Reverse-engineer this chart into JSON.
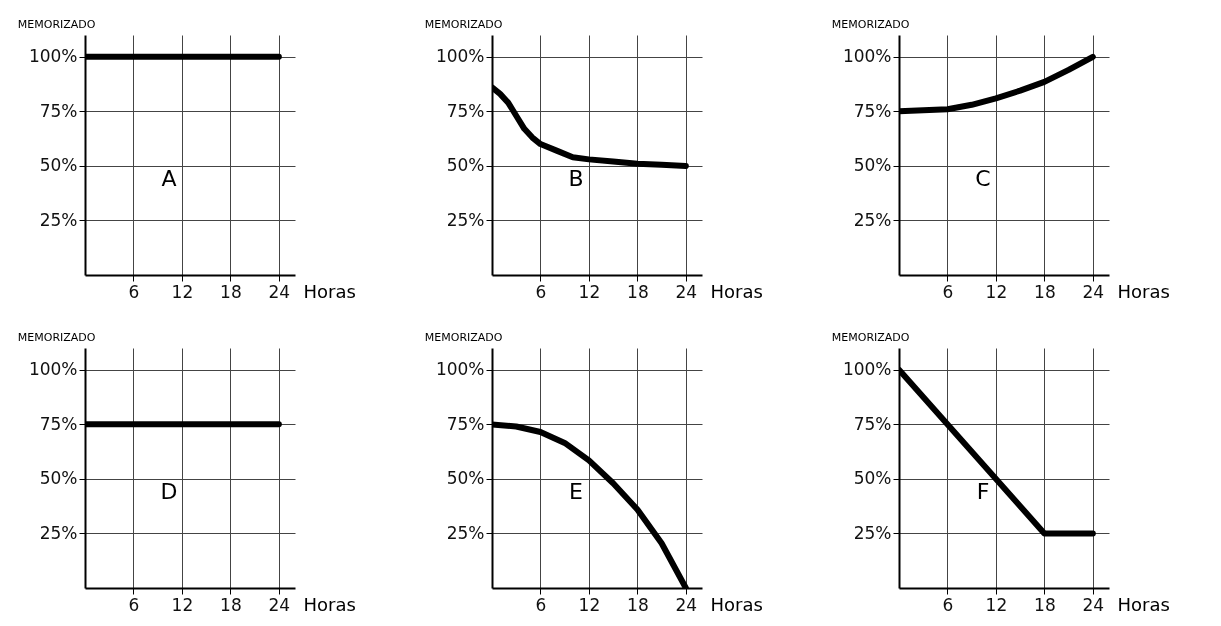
{
  "chart_data": [
    {
      "type": "line",
      "xlabel": "Horas",
      "ylabel": "MEMORIZADO",
      "annotations": [
        "A"
      ],
      "xlim": [
        0,
        26
      ],
      "ylim": [
        0,
        110
      ],
      "xticks": [
        6,
        12,
        18,
        24
      ],
      "yticks": [
        {
          "value": 25,
          "label": "25%"
        },
        {
          "value": 50,
          "label": "50%"
        },
        {
          "value": 75,
          "label": "75%"
        },
        {
          "value": 100,
          "label": "100%"
        }
      ],
      "grid": true,
      "series": [
        {
          "color": "#000000",
          "x": [
            0,
            24
          ],
          "values": [
            100,
            100
          ]
        }
      ]
    },
    {
      "type": "line",
      "xlabel": "Horas",
      "ylabel": "MEMORIZADO",
      "annotations": [
        "B"
      ],
      "xlim": [
        0,
        26
      ],
      "ylim": [
        0,
        110
      ],
      "xticks": [
        6,
        12,
        18,
        24
      ],
      "yticks": [
        {
          "value": 25,
          "label": "25%"
        },
        {
          "value": 50,
          "label": "50%"
        },
        {
          "value": 75,
          "label": "75%"
        },
        {
          "value": 100,
          "label": "100%"
        }
      ],
      "grid": true,
      "series": [
        {
          "color": "#000000",
          "x": [
            0,
            1,
            2,
            3,
            4,
            5,
            6,
            8,
            10,
            12,
            15,
            18,
            21,
            24
          ],
          "values": [
            86,
            83,
            79,
            73,
            67,
            63,
            60,
            57,
            54,
            53,
            52,
            51,
            50.5,
            50
          ]
        }
      ]
    },
    {
      "type": "line",
      "xlabel": "Horas",
      "ylabel": "MEMORIZADO",
      "annotations": [
        "C"
      ],
      "xlim": [
        0,
        26
      ],
      "ylim": [
        0,
        110
      ],
      "xticks": [
        6,
        12,
        18,
        24
      ],
      "yticks": [
        {
          "value": 25,
          "label": "25%"
        },
        {
          "value": 50,
          "label": "50%"
        },
        {
          "value": 75,
          "label": "75%"
        },
        {
          "value": 100,
          "label": "100%"
        }
      ],
      "grid": true,
      "series": [
        {
          "color": "#000000",
          "x": [
            0,
            3,
            6,
            9,
            12,
            15,
            18,
            21,
            24
          ],
          "values": [
            75,
            75.5,
            76,
            78,
            81,
            84.5,
            88.5,
            94,
            100
          ]
        }
      ]
    },
    {
      "type": "line",
      "xlabel": "Horas",
      "ylabel": "MEMORIZADO",
      "annotations": [
        "D"
      ],
      "xlim": [
        0,
        26
      ],
      "ylim": [
        0,
        110
      ],
      "xticks": [
        6,
        12,
        18,
        24
      ],
      "yticks": [
        {
          "value": 25,
          "label": "25%"
        },
        {
          "value": 50,
          "label": "50%"
        },
        {
          "value": 75,
          "label": "75%"
        },
        {
          "value": 100,
          "label": "100%"
        }
      ],
      "grid": true,
      "series": [
        {
          "color": "#000000",
          "x": [
            0,
            24
          ],
          "values": [
            75,
            75
          ]
        }
      ]
    },
    {
      "type": "line",
      "xlabel": "Horas",
      "ylabel": "MEMORIZADO",
      "annotations": [
        "E"
      ],
      "xlim": [
        0,
        26
      ],
      "ylim": [
        0,
        110
      ],
      "xticks": [
        6,
        12,
        18,
        24
      ],
      "yticks": [
        {
          "value": 25,
          "label": "25%"
        },
        {
          "value": 50,
          "label": "50%"
        },
        {
          "value": 75,
          "label": "75%"
        },
        {
          "value": 100,
          "label": "100%"
        }
      ],
      "grid": true,
      "series": [
        {
          "color": "#000000",
          "x": [
            0,
            3,
            6,
            9,
            12,
            15,
            18,
            21,
            24
          ],
          "values": [
            75,
            74,
            71.5,
            66.5,
            58.5,
            48,
            36,
            20.5,
            0
          ]
        }
      ]
    },
    {
      "type": "line",
      "xlabel": "Horas",
      "ylabel": "MEMORIZADO",
      "annotations": [
        "F"
      ],
      "xlim": [
        0,
        26
      ],
      "ylim": [
        0,
        110
      ],
      "xticks": [
        6,
        12,
        18,
        24
      ],
      "yticks": [
        {
          "value": 25,
          "label": "25%"
        },
        {
          "value": 50,
          "label": "50%"
        },
        {
          "value": 75,
          "label": "75%"
        },
        {
          "value": 100,
          "label": "100%"
        }
      ],
      "grid": true,
      "series": [
        {
          "color": "#000000",
          "x": [
            0,
            18,
            24
          ],
          "values": [
            100,
            25,
            25
          ]
        }
      ]
    }
  ]
}
